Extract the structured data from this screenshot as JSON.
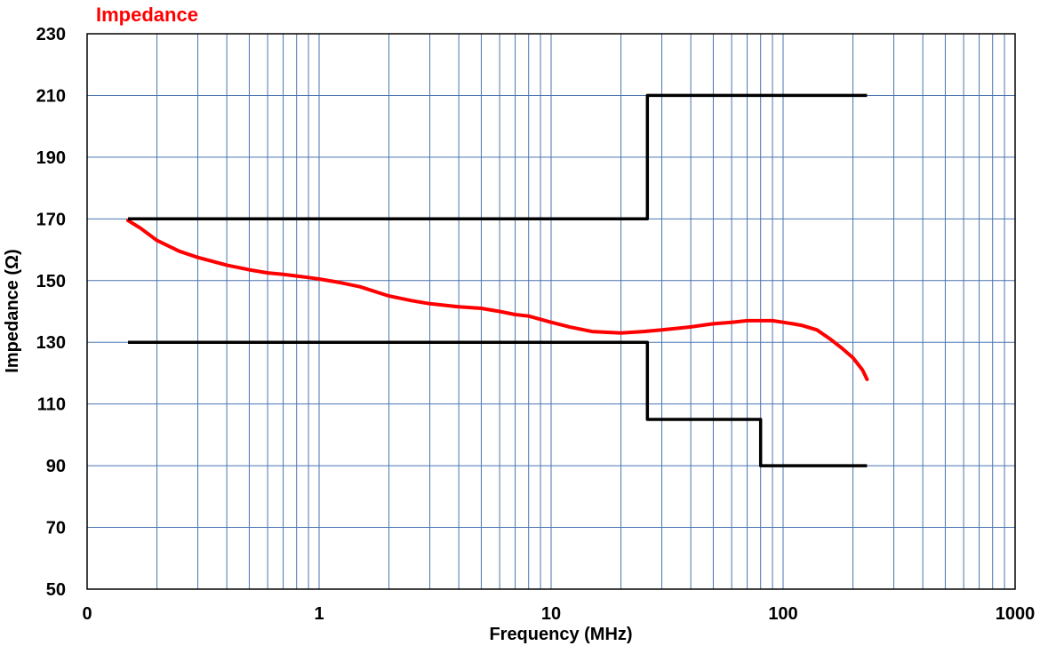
{
  "chart_data": {
    "type": "line",
    "title": "Impedance",
    "xlabel": "Frequency (MHz)",
    "ylabel": "Impedance (Ω)",
    "x_scale": "log",
    "xlim": [
      0.1,
      1000
    ],
    "ylim": [
      50,
      230
    ],
    "x_tick_labels": [
      "0",
      "1",
      "10",
      "100",
      "1000"
    ],
    "y_ticks": [
      50,
      70,
      90,
      110,
      130,
      150,
      170,
      190,
      210,
      230
    ],
    "grid": true,
    "colors": {
      "title": "#ff0000",
      "measured": "#ff0000",
      "limits": "#000000",
      "grid": "#4a74b0"
    },
    "series": [
      {
        "key": "measured",
        "x": [
          0.15,
          0.17,
          0.2,
          0.25,
          0.3,
          0.4,
          0.5,
          0.6,
          0.7,
          0.8,
          0.9,
          1,
          1.2,
          1.5,
          2,
          2.5,
          3,
          4,
          5,
          6,
          7,
          8,
          10,
          12,
          15,
          20,
          25,
          30,
          40,
          50,
          60,
          70,
          80,
          90,
          100,
          110,
          120,
          140,
          160,
          180,
          200,
          220,
          230
        ],
        "y": [
          169.5,
          167,
          163,
          159.5,
          157.5,
          155,
          153.5,
          152.5,
          152,
          151.5,
          151,
          150.5,
          149.5,
          148,
          145,
          143.5,
          142.5,
          141.5,
          141,
          140,
          139,
          138.5,
          136.5,
          135,
          133.5,
          133,
          133.5,
          134,
          135,
          136,
          136.5,
          137,
          137,
          137,
          136.5,
          136,
          135.5,
          134,
          131,
          128,
          125,
          121,
          118
        ]
      },
      {
        "key": "upper-limit",
        "x": [
          0.15,
          26,
          26,
          230
        ],
        "y": [
          170,
          170,
          210,
          210
        ]
      },
      {
        "key": "lower-limit",
        "x": [
          0.15,
          26,
          26,
          80,
          80,
          230
        ],
        "y": [
          130,
          130,
          105,
          105,
          90,
          90
        ]
      }
    ]
  }
}
